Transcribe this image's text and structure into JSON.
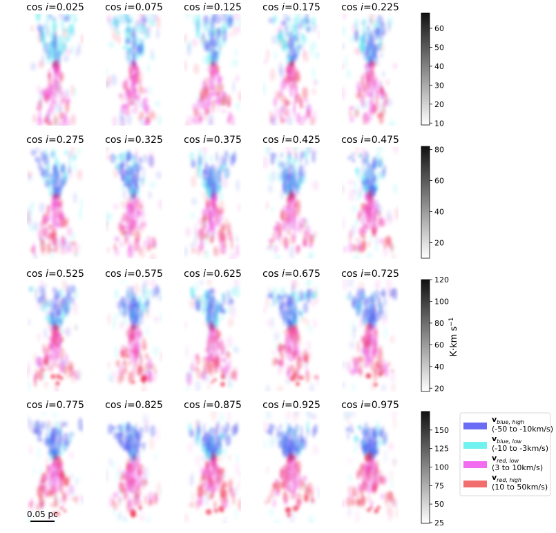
{
  "chart_data": {
    "type": "image-grid",
    "panels": [
      [
        "cos i=0.025",
        "cos i=0.075",
        "cos i=0.125",
        "cos i=0.175",
        "cos i=0.225"
      ],
      [
        "cos i=0.275",
        "cos i=0.325",
        "cos i=0.375",
        "cos i=0.425",
        "cos i=0.475"
      ],
      [
        "cos i=0.525",
        "cos i=0.575",
        "cos i=0.625",
        "cos i=0.675",
        "cos i=0.725"
      ],
      [
        "cos i=0.775",
        "cos i=0.825",
        "cos i=0.875",
        "cos i=0.925",
        "cos i=0.975"
      ]
    ],
    "title_prefix": "cos ",
    "title_var": "i",
    "cos_i_values": [
      0.025,
      0.075,
      0.125,
      0.175,
      0.225,
      0.275,
      0.325,
      0.375,
      0.425,
      0.475,
      0.525,
      0.575,
      0.625,
      0.675,
      0.725,
      0.775,
      0.825,
      0.875,
      0.925,
      0.975
    ],
    "colorbars": [
      {
        "row": 1,
        "ticks": [
          10,
          20,
          30,
          40,
          50,
          60
        ],
        "range": [
          9,
          68
        ]
      },
      {
        "row": 2,
        "ticks": [
          20,
          40,
          60,
          80
        ],
        "range": [
          10,
          82
        ]
      },
      {
        "row": 3,
        "ticks": [
          20,
          40,
          60,
          80,
          100,
          120
        ],
        "range": [
          17,
          120
        ]
      },
      {
        "row": 4,
        "ticks": [
          25,
          50,
          75,
          100,
          125,
          150
        ],
        "range": [
          24,
          175
        ]
      }
    ],
    "colorbar_label": "K·km s",
    "colorbar_label_exp": "−1",
    "legend": [
      {
        "label_main": "v",
        "label_sub": "blue, high",
        "range": "(-50 to -10km/s)",
        "color": "#6a6cf5"
      },
      {
        "label_main": "v",
        "label_sub": "blue, low",
        "range": "(-10 to -3km/s)",
        "color": "#6ff2f0"
      },
      {
        "label_main": "v",
        "label_sub": "red, low",
        "range": "(3 to 10km/s)",
        "color": "#f26cf0"
      },
      {
        "label_main": "v",
        "label_sub": "red, high",
        "range": "(10 to 50km/s)",
        "color": "#f26e6e"
      }
    ],
    "scale_bar": "0.05 pc",
    "colors": {
      "blue_high": "#4f5cf0",
      "blue_low": "#4ae8f0",
      "red_low": "#f050e0",
      "red_high": "#f03050",
      "colorbar_dark": "#111111"
    }
  }
}
